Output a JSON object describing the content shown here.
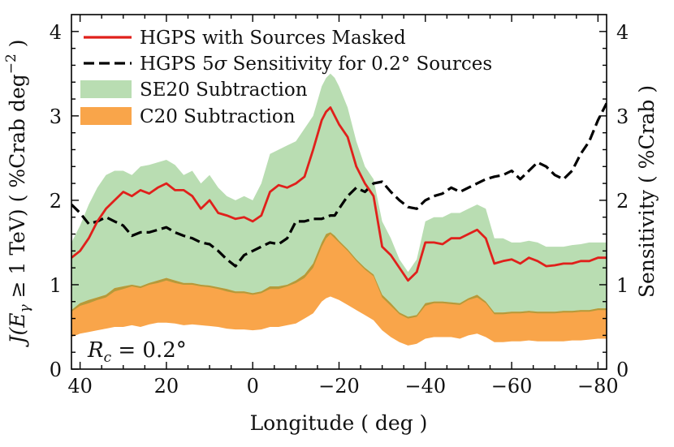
{
  "chart_data": {
    "type": "line",
    "x_name": "Longitude",
    "x_unit": "deg",
    "x_tick_labels": [
      "40",
      "20",
      "0",
      "−20",
      "−40",
      "−60",
      "−80"
    ],
    "x_ticks": [
      40,
      20,
      0,
      -20,
      -40,
      -60,
      -80
    ],
    "xlim": [
      42,
      -82
    ],
    "left_axis": {
      "label_parts": [
        "J(E",
        "γ",
        " ≥ 1 TeV) ( %Crab deg",
        "−2",
        " )"
      ],
      "ylim": [
        0,
        4.2
      ],
      "ticks": [
        0,
        1,
        2,
        3,
        4
      ],
      "tick_labels": [
        "0",
        "1",
        "2",
        "3",
        "4"
      ]
    },
    "right_axis": {
      "label": "Sensitivity ( %Crab )",
      "ylim": [
        0,
        4.2
      ],
      "ticks": [
        0,
        1,
        2,
        3,
        4
      ],
      "tick_labels": [
        "0",
        "1",
        "2",
        "3",
        "4"
      ]
    },
    "annotation": {
      "text_parts": [
        "R",
        "c",
        " = 0.2°"
      ]
    },
    "legend": {
      "placement": "top-left",
      "entries": [
        {
          "key": "line1",
          "text": "HGPS with Sources Masked"
        },
        {
          "key": "line2",
          "text_parts": [
            "HGPS 5",
            "σ",
            " Sensitivity for 0.2° Sources"
          ]
        },
        {
          "key": "band1",
          "text": "SE20 Subtraction"
        },
        {
          "key": "band2",
          "text": "C20 Subtraction"
        }
      ]
    },
    "colors": {
      "line1": "#e0201b",
      "line2": "#000000",
      "band1": "#b9ddb2",
      "band2": "#f9a54a",
      "overlap": "#b59a3a"
    },
    "x": [
      42,
      40,
      38,
      36,
      34,
      32,
      30,
      28,
      26,
      24,
      22,
      20,
      18,
      16,
      14,
      12,
      10,
      8,
      6,
      4,
      2,
      0,
      -2,
      -4,
      -6,
      -8,
      -10,
      -12,
      -14,
      -16,
      -17,
      -18,
      -19,
      -20,
      -22,
      -24,
      -26,
      -28,
      -30,
      -32,
      -34,
      -36,
      -38,
      -40,
      -42,
      -44,
      -46,
      -48,
      -50,
      -52,
      -54,
      -56,
      -58,
      -60,
      -62,
      -64,
      -66,
      -68,
      -70,
      -72,
      -74,
      -76,
      -78,
      -80,
      -82
    ],
    "series": [
      {
        "key": "band1",
        "upper": [
          1.5,
          1.7,
          1.95,
          2.15,
          2.3,
          2.35,
          2.35,
          2.3,
          2.4,
          2.42,
          2.45,
          2.48,
          2.42,
          2.3,
          2.35,
          2.2,
          2.3,
          2.15,
          2.05,
          2.0,
          2.05,
          2.0,
          2.2,
          2.55,
          2.6,
          2.65,
          2.7,
          2.85,
          3.0,
          3.35,
          3.45,
          3.5,
          3.45,
          3.35,
          3.1,
          2.7,
          2.4,
          2.25,
          1.75,
          1.55,
          1.3,
          1.15,
          1.3,
          1.75,
          1.8,
          1.8,
          1.85,
          1.85,
          1.9,
          1.95,
          1.9,
          1.55,
          1.55,
          1.5,
          1.5,
          1.52,
          1.5,
          1.45,
          1.45,
          1.45,
          1.47,
          1.48,
          1.5,
          1.5,
          1.5
        ],
        "lower": [
          0.68,
          0.75,
          0.78,
          0.82,
          0.85,
          0.92,
          0.95,
          0.98,
          0.96,
          1.0,
          1.02,
          1.05,
          1.02,
          1.0,
          1.0,
          0.98,
          0.97,
          0.95,
          0.92,
          0.9,
          0.9,
          0.88,
          0.9,
          0.95,
          0.95,
          0.98,
          1.02,
          1.08,
          1.2,
          1.45,
          1.55,
          1.6,
          1.55,
          1.5,
          1.4,
          1.28,
          1.18,
          1.1,
          0.85,
          0.75,
          0.65,
          0.6,
          0.62,
          0.75,
          0.78,
          0.78,
          0.77,
          0.76,
          0.82,
          0.85,
          0.78,
          0.65,
          0.65,
          0.66,
          0.66,
          0.67,
          0.66,
          0.66,
          0.66,
          0.67,
          0.67,
          0.68,
          0.68,
          0.7,
          0.7
        ]
      },
      {
        "key": "band2",
        "upper": [
          0.7,
          0.78,
          0.82,
          0.85,
          0.88,
          0.96,
          0.98,
          1.0,
          0.98,
          1.02,
          1.05,
          1.08,
          1.05,
          1.02,
          1.02,
          1.0,
          0.99,
          0.97,
          0.95,
          0.92,
          0.92,
          0.9,
          0.92,
          0.98,
          0.98,
          1.0,
          1.05,
          1.12,
          1.25,
          1.5,
          1.6,
          1.62,
          1.58,
          1.52,
          1.42,
          1.3,
          1.2,
          1.12,
          0.88,
          0.78,
          0.67,
          0.62,
          0.64,
          0.78,
          0.8,
          0.8,
          0.79,
          0.78,
          0.84,
          0.88,
          0.8,
          0.67,
          0.67,
          0.68,
          0.68,
          0.69,
          0.68,
          0.68,
          0.68,
          0.69,
          0.69,
          0.7,
          0.7,
          0.72,
          0.72
        ],
        "lower": [
          0.38,
          0.42,
          0.44,
          0.46,
          0.48,
          0.5,
          0.5,
          0.52,
          0.5,
          0.53,
          0.55,
          0.55,
          0.54,
          0.52,
          0.53,
          0.52,
          0.51,
          0.5,
          0.48,
          0.47,
          0.47,
          0.46,
          0.47,
          0.5,
          0.5,
          0.52,
          0.54,
          0.6,
          0.66,
          0.8,
          0.84,
          0.86,
          0.84,
          0.82,
          0.76,
          0.7,
          0.64,
          0.58,
          0.46,
          0.38,
          0.32,
          0.28,
          0.3,
          0.36,
          0.38,
          0.38,
          0.38,
          0.36,
          0.4,
          0.42,
          0.38,
          0.32,
          0.32,
          0.33,
          0.33,
          0.34,
          0.33,
          0.33,
          0.33,
          0.33,
          0.34,
          0.34,
          0.35,
          0.36,
          0.36
        ]
      },
      {
        "key": "line1",
        "values": [
          1.32,
          1.4,
          1.55,
          1.75,
          1.9,
          2.0,
          2.1,
          2.05,
          2.12,
          2.08,
          2.15,
          2.2,
          2.12,
          2.12,
          2.05,
          1.9,
          2.0,
          1.85,
          1.82,
          1.78,
          1.8,
          1.75,
          1.82,
          2.1,
          2.18,
          2.15,
          2.2,
          2.28,
          2.6,
          2.95,
          3.05,
          3.1,
          3.0,
          2.9,
          2.75,
          2.4,
          2.2,
          2.05,
          1.45,
          1.35,
          1.2,
          1.05,
          1.15,
          1.5,
          1.5,
          1.48,
          1.55,
          1.55,
          1.6,
          1.65,
          1.55,
          1.25,
          1.28,
          1.3,
          1.25,
          1.32,
          1.28,
          1.22,
          1.23,
          1.25,
          1.25,
          1.28,
          1.28,
          1.32,
          1.32
        ]
      },
      {
        "key": "line2",
        "values": [
          1.95,
          1.85,
          1.72,
          1.75,
          1.8,
          1.75,
          1.7,
          1.58,
          1.62,
          1.62,
          1.65,
          1.68,
          1.62,
          1.58,
          1.55,
          1.5,
          1.48,
          1.4,
          1.3,
          1.22,
          1.35,
          1.4,
          1.45,
          1.5,
          1.48,
          1.55,
          1.75,
          1.75,
          1.78,
          1.78,
          1.8,
          1.82,
          1.82,
          1.9,
          2.05,
          2.15,
          2.1,
          2.2,
          2.22,
          2.1,
          2.0,
          1.92,
          1.9,
          2.0,
          2.05,
          2.08,
          2.15,
          2.1,
          2.15,
          2.2,
          2.25,
          2.28,
          2.3,
          2.35,
          2.25,
          2.35,
          2.45,
          2.4,
          2.3,
          2.25,
          2.35,
          2.55,
          2.7,
          2.95,
          3.15
        ]
      }
    ]
  }
}
